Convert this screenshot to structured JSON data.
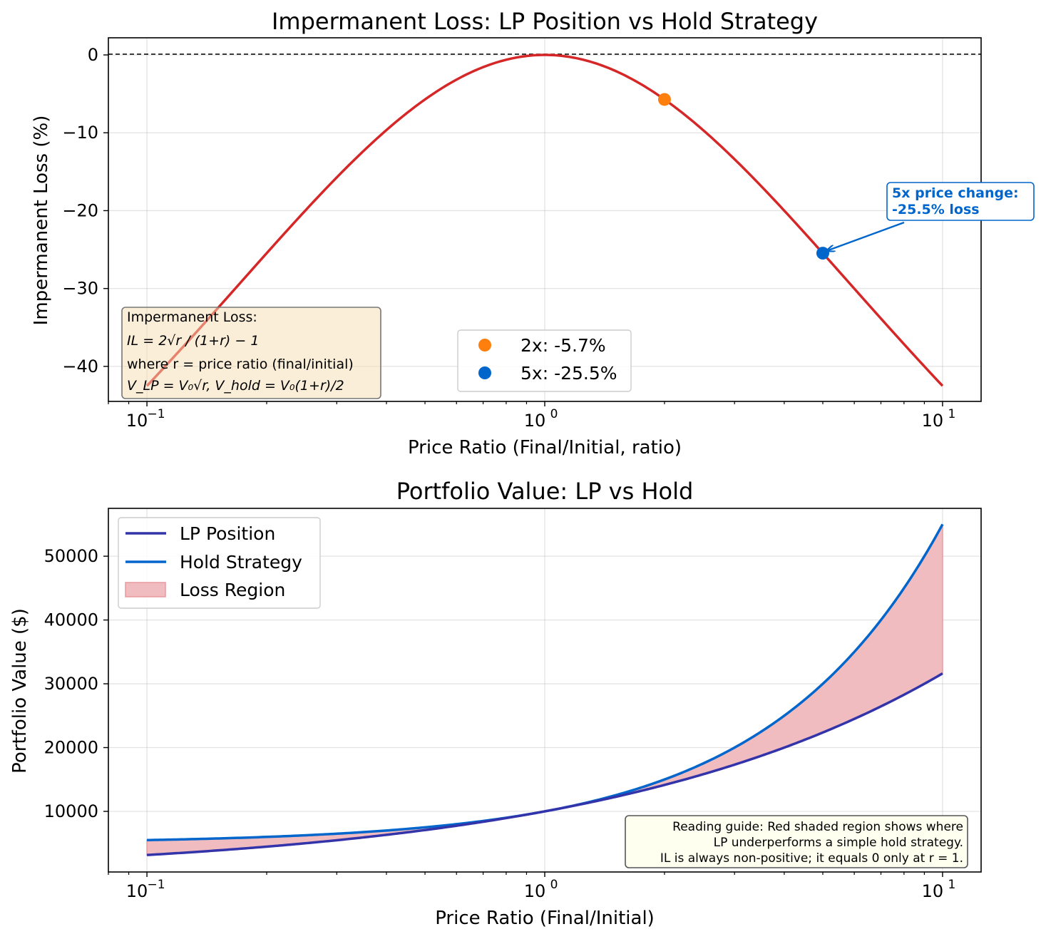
{
  "chart_data": [
    {
      "type": "line",
      "title": "Impermanent Loss: LP Position vs Hold Strategy",
      "xlabel": "Price Ratio (Final/Initial, ratio)",
      "ylabel": "Impermanent Loss (%)",
      "xscale": "log",
      "xlim": [
        0.08,
        12.5
      ],
      "ylim": [
        -44.5,
        2.2
      ],
      "x_ticks": [
        0.1,
        1,
        10
      ],
      "x_tick_labels": [
        "10",
        "10",
        "10"
      ],
      "x_tick_exponents": [
        "−1",
        "0",
        "1"
      ],
      "y_ticks": [
        0,
        -10,
        -20,
        -30,
        -40
      ],
      "y_tick_labels": [
        "0",
        "−10",
        "−20",
        "−30",
        "−40"
      ],
      "grid": true,
      "series": [
        {
          "name": "Impermanent Loss",
          "color": "#d62728",
          "formula": "2*sqrt(r)/(1+r)-1",
          "x_range": [
            0.1,
            10
          ]
        }
      ],
      "reference_line": {
        "y": 0,
        "style": "dashed",
        "color": "#000000"
      },
      "points": [
        {
          "label": "2x: -5.7%",
          "x": 2,
          "y": -5.72,
          "color": "#ff7f0e"
        },
        {
          "label": "5x: -25.5%",
          "x": 5,
          "y": -25.46,
          "color": "#0066cc"
        }
      ],
      "legend_position": "bottom-center",
      "annotation": {
        "line1": "5x price change:",
        "line2": "-25.5% loss",
        "x": 5,
        "y": -25.46,
        "color": "#0066cc"
      },
      "formula_box": {
        "heading": "Impermanent Loss:",
        "line1": "IL = 2√r / (1+r) − 1",
        "line2": "where r = price ratio (final/initial)",
        "line3": "V_LP = V₀√r, V_hold = V₀(1+r)/2"
      }
    },
    {
      "type": "area",
      "title": "Portfolio Value: LP vs Hold",
      "xlabel": "Price Ratio (Final/Initial)",
      "ylabel": "Portfolio Value ($)",
      "xscale": "log",
      "xlim": [
        0.08,
        12.5
      ],
      "ylim": [
        500,
        57500
      ],
      "x_ticks": [
        0.1,
        1,
        10
      ],
      "x_tick_labels": [
        "10",
        "10",
        "10"
      ],
      "x_tick_exponents": [
        "−1",
        "0",
        "1"
      ],
      "y_ticks": [
        10000,
        20000,
        30000,
        40000,
        50000
      ],
      "y_tick_labels": [
        "10000",
        "20000",
        "30000",
        "40000",
        "50000"
      ],
      "grid": true,
      "initial_value": 10000,
      "series": [
        {
          "name": "LP Position",
          "color": "#3333aa",
          "formula": "V0*sqrt(r)",
          "x_range": [
            0.1,
            10
          ]
        },
        {
          "name": "Hold Strategy",
          "color": "#0066cc",
          "formula": "V0*(1+r)/2",
          "x_range": [
            0.1,
            10
          ]
        },
        {
          "name": "Loss Region",
          "color": "#f0bcbf",
          "fill_between": [
            "LP Position",
            "Hold Strategy"
          ]
        }
      ],
      "legend_position": "top-left",
      "note": {
        "line1": "Reading guide: Red shaded region shows where",
        "line2": "LP underperforms a simple hold strategy.",
        "line3": "IL is always non-positive; it equals 0 only at r = 1."
      }
    }
  ]
}
